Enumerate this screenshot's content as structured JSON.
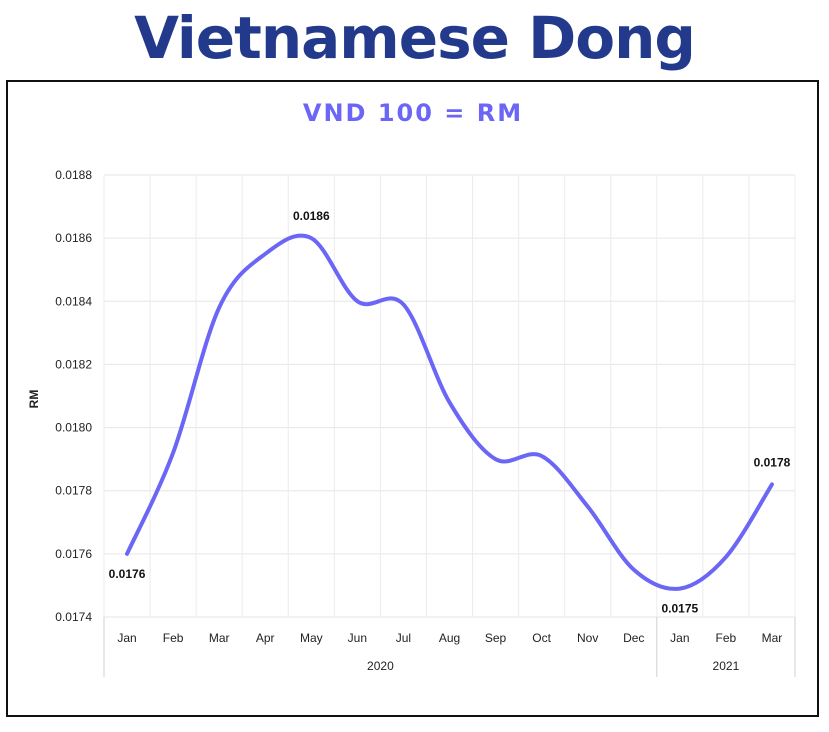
{
  "page": {
    "title": "Vietnamese Dong"
  },
  "chart_data": {
    "type": "line",
    "title": "VND 100 = RM",
    "ylabel": "RM",
    "xlabel": "",
    "ylim": [
      0.0174,
      0.0188
    ],
    "yticks": [
      "0.0188",
      "0.0186",
      "0.0184",
      "0.0182",
      "0.0180",
      "0.0178",
      "0.0176",
      "0.0174"
    ],
    "categories": [
      "Jan",
      "Feb",
      "Mar",
      "Apr",
      "May",
      "Jun",
      "Jul",
      "Aug",
      "Sep",
      "Oct",
      "Nov",
      "Dec",
      "Jan",
      "Feb",
      "Mar"
    ],
    "groups": [
      {
        "label": "2020",
        "count": 12
      },
      {
        "label": "2021",
        "count": 3
      }
    ],
    "series": [
      {
        "values": [
          0.0176,
          0.01792,
          0.01838,
          0.01855,
          0.0186,
          0.0184,
          0.01839,
          0.01808,
          0.0179,
          0.01791,
          0.01775,
          0.01755,
          0.01749,
          0.01759,
          0.01782
        ],
        "color": "#6b66f5"
      }
    ],
    "data_labels": [
      {
        "index": 0,
        "text": "0.0176",
        "position": "below"
      },
      {
        "index": 4,
        "text": "0.0186",
        "position": "above"
      },
      {
        "index": 12,
        "text": "0.0175",
        "position": "below"
      },
      {
        "index": 14,
        "text": "0.0178",
        "position": "above"
      }
    ],
    "grid": true,
    "legend": "none"
  }
}
